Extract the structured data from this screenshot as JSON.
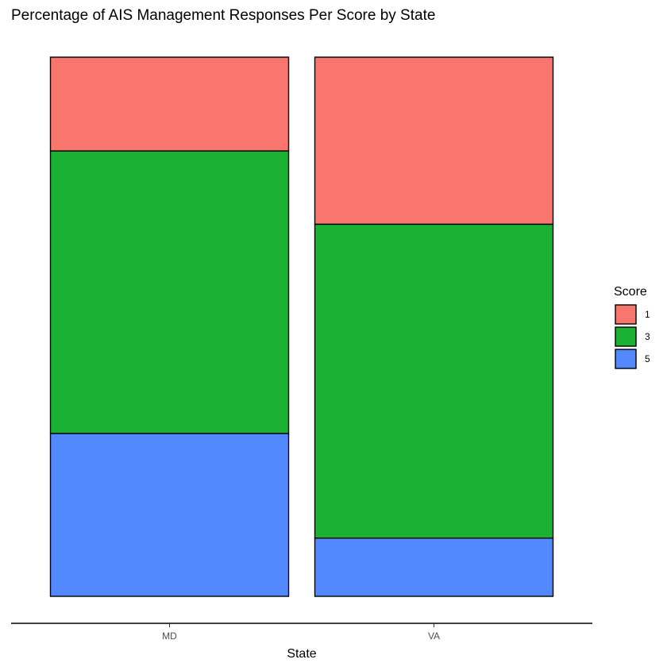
{
  "chart_data": {
    "type": "bar",
    "stacked": true,
    "normalized": true,
    "title": "Percentage of AIS Management Responses Per Score by State",
    "xlabel": "State",
    "ylabel": "",
    "categories": [
      "MD",
      "VA"
    ],
    "series": [
      {
        "name": "1",
        "color": "#F8766D",
        "values": [
          0.174,
          0.31
        ]
      },
      {
        "name": "3",
        "color": "#1BB234",
        "values": [
          0.524,
          0.582
        ]
      },
      {
        "name": "5",
        "color": "#5289FF",
        "values": [
          0.302,
          0.108
        ]
      }
    ],
    "ylim": [
      0,
      1
    ],
    "grid": false,
    "y_axis_visible": false,
    "legend": {
      "title": "Score",
      "position": "right"
    }
  }
}
